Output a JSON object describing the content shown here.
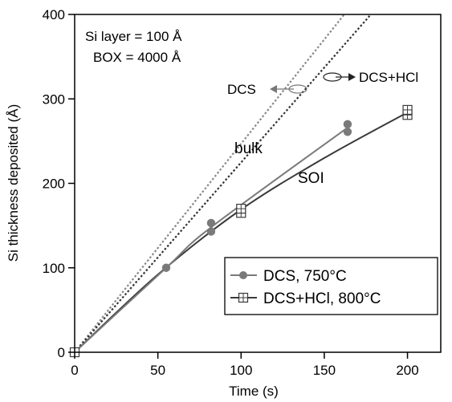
{
  "chart_data": {
    "type": "line",
    "title": "",
    "xlabel": "Time (s)",
    "ylabel": "Si thickness deposited (Å)",
    "xlim": [
      0,
      220
    ],
    "ylim": [
      0,
      400
    ],
    "xticks": [
      0,
      50,
      100,
      150,
      200
    ],
    "yticks": [
      0,
      100,
      200,
      300,
      400
    ],
    "grid": false,
    "legend_position": "bottom-right",
    "series": [
      {
        "name": "DCS, 750°C",
        "marker": "circle",
        "color": "#7a7a7a",
        "points": [
          [
            0,
            0
          ],
          [
            55,
            100
          ],
          [
            82,
            143
          ],
          [
            82,
            153
          ],
          [
            164,
            261
          ],
          [
            164,
            270
          ]
        ]
      },
      {
        "name": "DCS+HCl, 800°C",
        "marker": "square-cross",
        "color": "#3a3a3a",
        "points": [
          [
            0,
            0
          ],
          [
            100,
            165
          ],
          [
            100,
            170
          ],
          [
            200,
            281
          ],
          [
            200,
            287
          ]
        ]
      }
    ],
    "curves": [
      {
        "id": "soi-curve",
        "kind": "fit",
        "color": "#3a3a3a",
        "points": [
          [
            0,
            0
          ],
          [
            50,
            92
          ],
          [
            100,
            169
          ],
          [
            150,
            230
          ],
          [
            200,
            284
          ]
        ]
      },
      {
        "id": "dcs-bulk",
        "kind": "dotted",
        "color": "#888888",
        "points": [
          [
            0,
            0
          ],
          [
            162,
            400
          ]
        ]
      },
      {
        "id": "dcshcl-bulk",
        "kind": "dotted",
        "color": "#333333",
        "points": [
          [
            0,
            0
          ],
          [
            178,
            400
          ]
        ]
      },
      {
        "id": "dcs-fit",
        "kind": "fit",
        "color": "#7a7a7a",
        "points": [
          [
            0,
            0
          ],
          [
            55,
            100
          ],
          [
            82,
            148
          ],
          [
            164,
            266
          ]
        ]
      }
    ],
    "annotations": {
      "info_line1": "Si layer = 100 Å",
      "info_line2": "BOX = 4000 Å",
      "dcs": "DCS",
      "dcs_hcl": "DCS+HCl",
      "bulk": "bulk",
      "soi": "SOI"
    }
  }
}
